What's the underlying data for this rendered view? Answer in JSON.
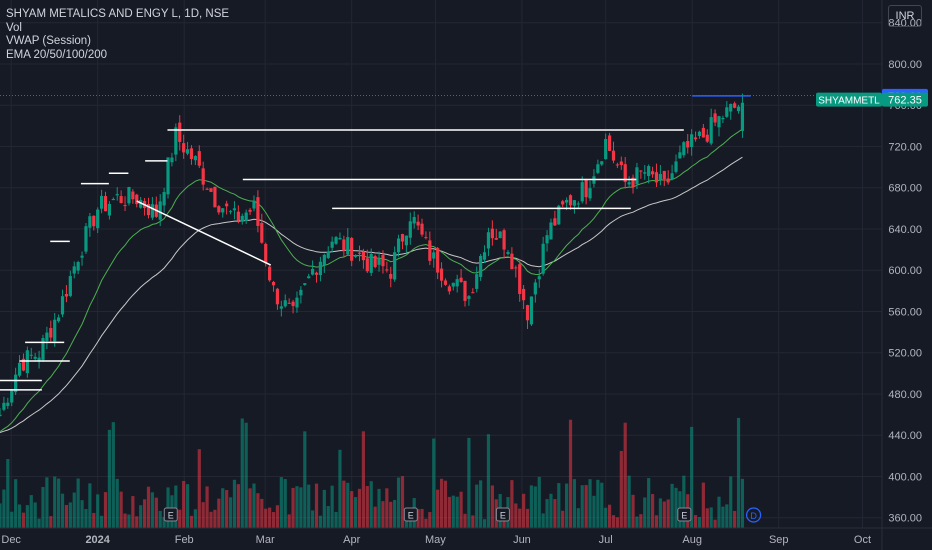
{
  "legend": {
    "title": "SHYAM METALICS AND ENGY L, 1D, NSE",
    "volume": "Vol",
    "vwap": "VWAP (Session)",
    "ema": "EMA 20/50/100/200"
  },
  "currency": "INR",
  "price_tag": {
    "ticker": "SHYAMMETL",
    "value": "762.35",
    "color": "#089981"
  },
  "level_tag": {
    "value": "769.00",
    "color": "#2962ff"
  },
  "colors": {
    "up": "#089981",
    "down": "#f23645",
    "background": "#161a25",
    "grid": "#242733",
    "text": "#b2b5be",
    "ema_fast": "#4caf50",
    "ema_slow": "#c8c8c8",
    "trendline": "#ffffff"
  },
  "icons": [
    "earnings-marker-icon",
    "dividend-marker-icon"
  ],
  "chart_data": {
    "type": "candlestick",
    "title": "SHYAM METALICS AND ENGY L, 1D, NSE",
    "y_axis": {
      "ticks": [
        360,
        400,
        440,
        480,
        520,
        560,
        600,
        640,
        680,
        720,
        760,
        800,
        840
      ],
      "tick_labels": [
        "360.00",
        "400.00",
        "440.00",
        "480.00",
        "520.00",
        "560.00",
        "600.00",
        "640.00",
        "680.00",
        "720.00",
        "760.00",
        "800.00",
        "840.00"
      ],
      "range": [
        350,
        862
      ]
    },
    "x_axis": {
      "labels": [
        "Dec",
        "2024",
        "Feb",
        "Mar",
        "Apr",
        "May",
        "Jun",
        "Jul",
        "Aug",
        "Sep",
        "Oct"
      ],
      "range": [
        "2023-11-27",
        "2024-10-08"
      ]
    },
    "grid": true,
    "last_price": 762.35,
    "resistance_level": 769.0,
    "series": [
      {
        "name": "Price",
        "points": [
          [
            "2023-11-27",
            460
          ],
          [
            "2023-12-04",
            510
          ],
          [
            "2023-12-11",
            520
          ],
          [
            "2023-12-18",
            560
          ],
          [
            "2023-12-25",
            615
          ],
          [
            "2024-01-01",
            660
          ],
          [
            "2024-01-08",
            670
          ],
          [
            "2024-01-15",
            670
          ],
          [
            "2024-01-22",
            655
          ],
          [
            "2024-01-29",
            730
          ],
          [
            "2024-02-05",
            705
          ],
          [
            "2024-02-12",
            670
          ],
          [
            "2024-02-19",
            650
          ],
          [
            "2024-02-26",
            660
          ],
          [
            "2024-03-04",
            580
          ],
          [
            "2024-03-11",
            555
          ],
          [
            "2024-03-18",
            600
          ],
          [
            "2024-03-25",
            630
          ],
          [
            "2024-04-01",
            620
          ],
          [
            "2024-04-08",
            605
          ],
          [
            "2024-04-15",
            600
          ],
          [
            "2024-04-22",
            655
          ],
          [
            "2024-04-29",
            615
          ],
          [
            "2024-05-06",
            590
          ],
          [
            "2024-05-13",
            575
          ],
          [
            "2024-05-20",
            640
          ],
          [
            "2024-05-27",
            625
          ],
          [
            "2024-06-03",
            560
          ],
          [
            "2024-06-10",
            635
          ],
          [
            "2024-06-17",
            665
          ],
          [
            "2024-06-24",
            680
          ],
          [
            "2024-07-01",
            725
          ],
          [
            "2024-07-08",
            685
          ],
          [
            "2024-07-15",
            695
          ],
          [
            "2024-07-22",
            680
          ],
          [
            "2024-07-29",
            715
          ],
          [
            "2024-08-05",
            730
          ],
          [
            "2024-08-12",
            750
          ],
          [
            "2024-08-19",
            762.35
          ]
        ]
      }
    ],
    "horizontal_lines": [
      {
        "from": "2024-01-26",
        "to": "2024-07-29",
        "y": 736
      },
      {
        "from": "2024-02-22",
        "to": "2024-07-12",
        "y": 688
      },
      {
        "from": "2024-03-25",
        "to": "2024-07-10",
        "y": 660
      },
      {
        "from": "2023-12-26",
        "to": "2024-01-05",
        "y": 684
      },
      {
        "from": "2024-01-05",
        "to": "2024-01-12",
        "y": 694
      },
      {
        "from": "2024-01-18",
        "to": "2024-01-26",
        "y": 706
      },
      {
        "from": "2023-12-15",
        "to": "2023-12-22",
        "y": 628
      },
      {
        "from": "2023-11-27",
        "to": "2023-12-12",
        "y": 493
      },
      {
        "from": "2023-11-27",
        "to": "2023-12-12",
        "y": 484
      },
      {
        "from": "2023-12-06",
        "to": "2023-12-20",
        "y": 530
      },
      {
        "from": "2023-12-04",
        "to": "2023-12-22",
        "y": 512
      },
      {
        "from": "2024-08-01",
        "to": "2024-08-22",
        "y": 769
      }
    ],
    "trendline": {
      "from": [
        "2024-01-15",
        667
      ],
      "to": [
        "2024-03-03",
        605
      ]
    }
  }
}
